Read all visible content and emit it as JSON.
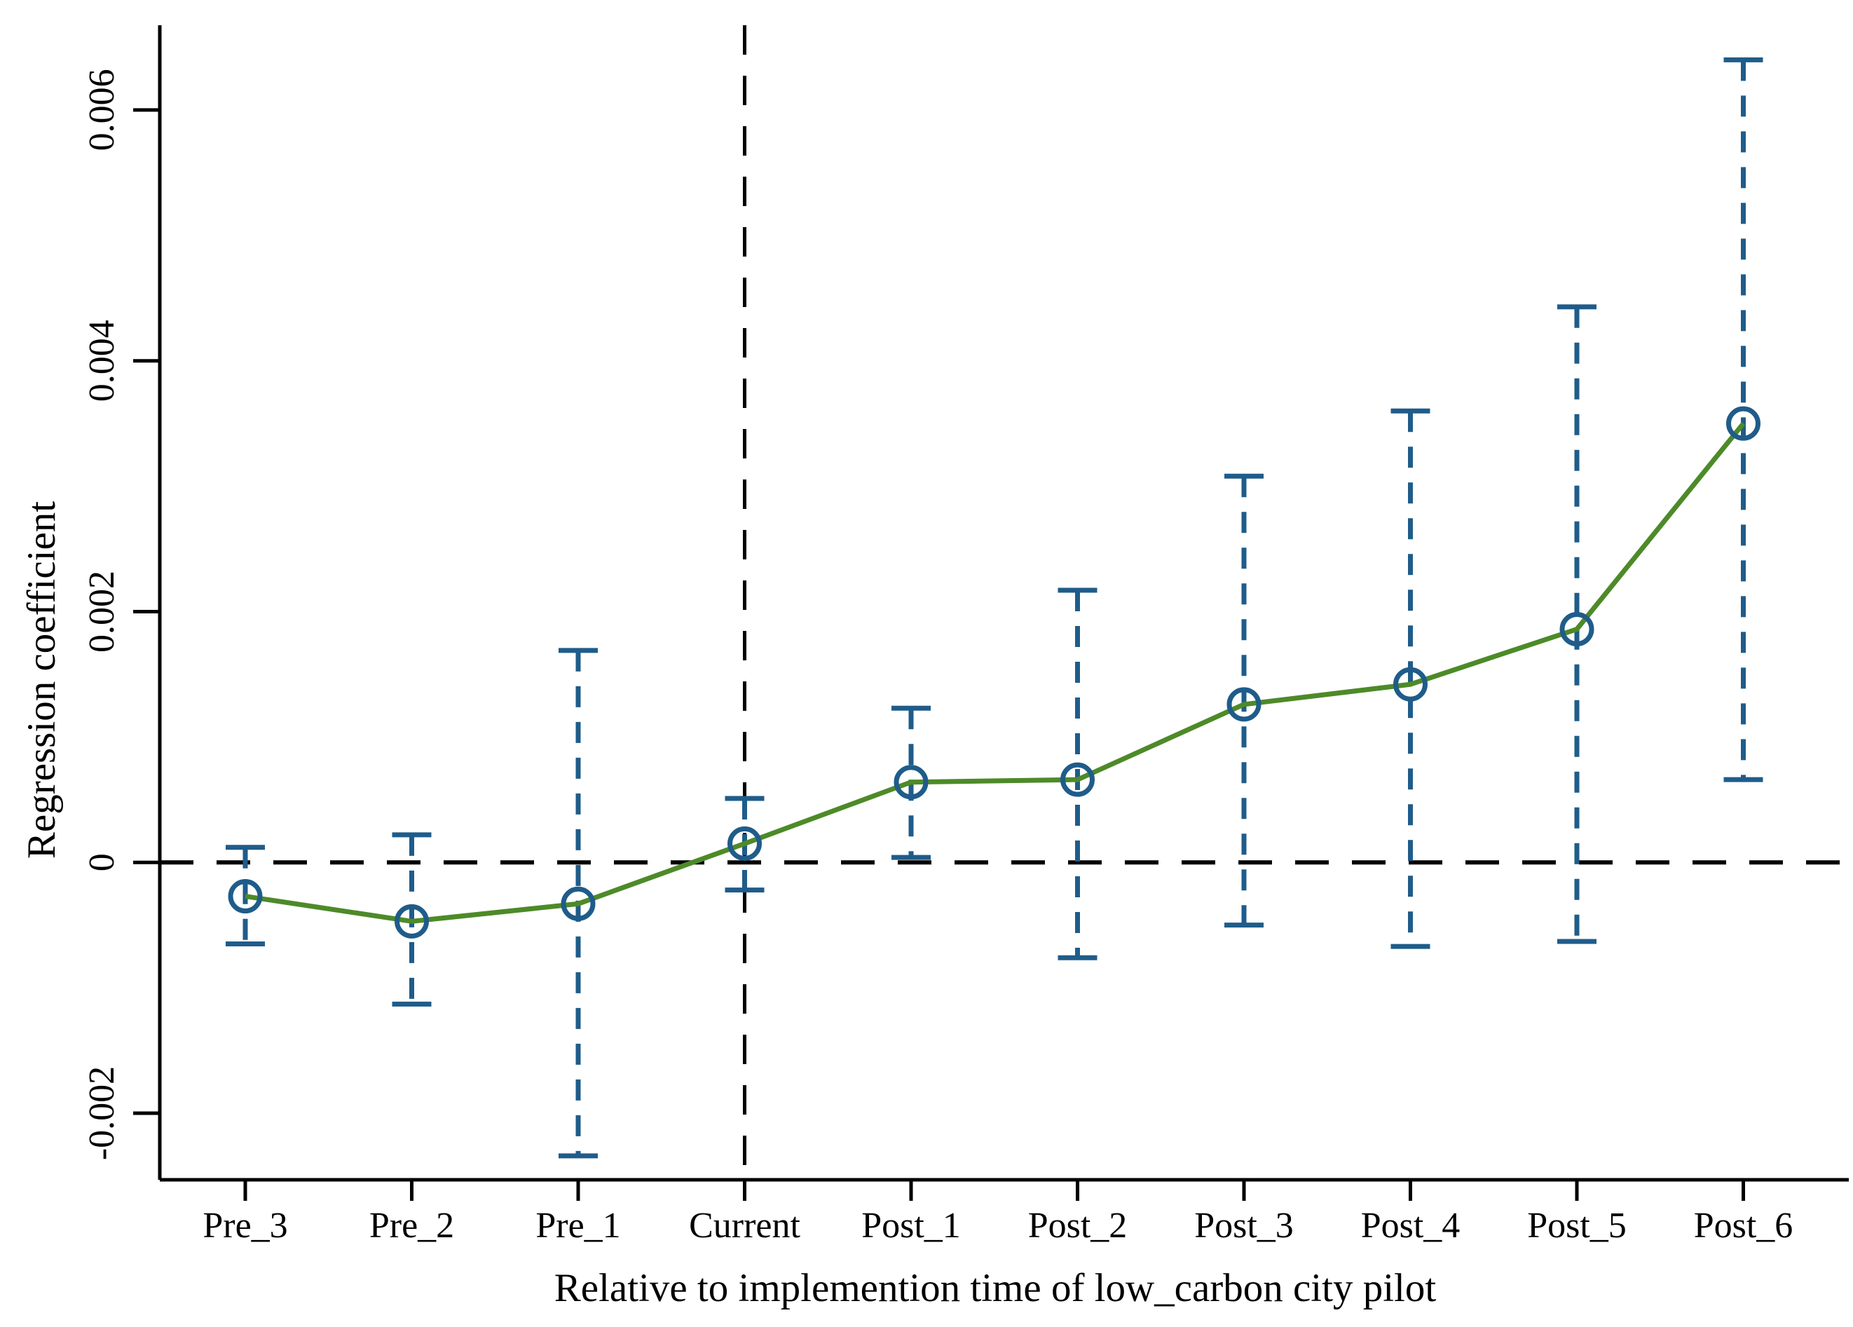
{
  "figure": {
    "background": "#ffffff",
    "kind": "event-study coefficient plot"
  },
  "chart_data": {
    "type": "line",
    "title": "",
    "xlabel": "Relative to implemention time of low_carbon city pilot",
    "ylabel": "Regression coefficient",
    "categories": [
      "Pre_3",
      "Pre_2",
      "Pre_1",
      "Current",
      "Post_1",
      "Post_2",
      "Post_3",
      "Post_4",
      "Post_5",
      "Post_6"
    ],
    "series": [
      {
        "name": "Regression coefficient",
        "values": [
          -0.00027,
          -0.00047,
          -0.00033,
          0.00015,
          0.00064,
          0.00066,
          0.00126,
          0.00142,
          0.00186,
          0.0035
        ]
      }
    ],
    "ci_low": [
      -0.00065,
      -0.00113,
      -0.00234,
      -0.00022,
      4e-05,
      -0.00076,
      -0.0005,
      -0.00067,
      -0.00063,
      0.00066
    ],
    "ci_high": [
      0.00012,
      0.00022,
      0.00169,
      0.00051,
      0.00123,
      0.00217,
      0.00308,
      0.0036,
      0.00443,
      0.0064
    ],
    "yticks": [
      -0.002,
      0,
      0.002,
      0.004,
      0.006
    ],
    "ytick_labels": [
      "-0.002",
      "0",
      "0.002",
      "0.004",
      "0.006"
    ],
    "ylim": [
      -0.002531,
      0.006676
    ],
    "grid": false,
    "legend": false,
    "reference_lines": {
      "horizontal_y": 0,
      "vertical_at_category": "Current",
      "style": "dashed-black"
    },
    "marker_style": "hollow-circle",
    "whisker_style": "dashed-with-solid-caps",
    "colors": {
      "line": "#4d8a28",
      "marker": "#1f5c8a",
      "whisker": "#1f5c8a",
      "axis": "#000000",
      "reference": "#000000",
      "background": "#ffffff"
    }
  }
}
